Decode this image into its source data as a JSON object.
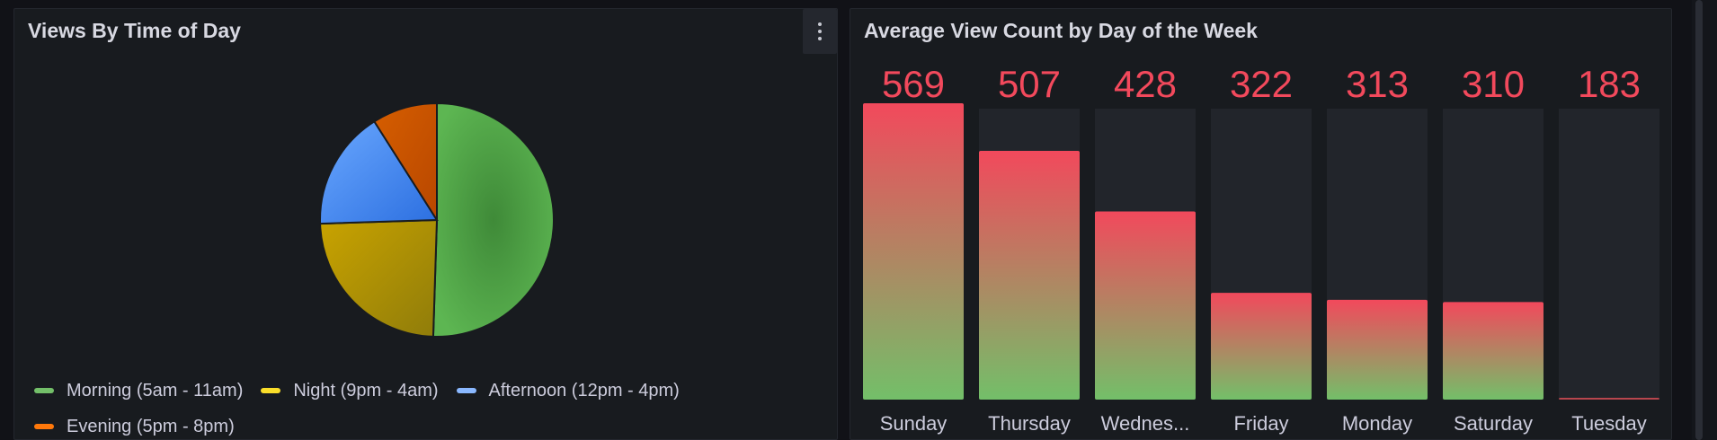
{
  "pie_panel": {
    "title": "Views By Time of Day",
    "menu_icon": "kebab-menu-icon"
  },
  "bar_panel": {
    "title": "Average View Count by Day of the Week"
  },
  "colors": {
    "morning": "#56a64b",
    "night": "#e0b400",
    "afternoon": "#5794f2",
    "evening": "#ff780a",
    "bar_top": "#f2495c",
    "bar_bottom": "#73bf69",
    "value_text": "#f2495c"
  },
  "legend": [
    {
      "label": "Morning (5am - 11am)",
      "color": "#73bf69"
    },
    {
      "label": "Night (9pm - 4am)",
      "color": "#fade2a"
    },
    {
      "label": "Afternoon (12pm - 4pm)",
      "color": "#8ab8ff"
    },
    {
      "label": "Evening (5pm - 8pm)",
      "color": "#ff780a"
    }
  ],
  "chart_data": [
    {
      "type": "pie",
      "labels": [
        "Morning (5am - 11am)",
        "Night (9pm - 4am)",
        "Afternoon (12pm - 4pm)",
        "Evening (5pm - 8pm)"
      ],
      "values": [
        50.5,
        24.0,
        16.5,
        9.0
      ],
      "colors": [
        "#56a64b",
        "#e0b400",
        "#3274d9",
        "#e05b00"
      ],
      "legend_position": "bottom"
    },
    {
      "type": "bar",
      "categories": [
        "Sunday",
        "Thursday",
        "Wednes...",
        "Friday",
        "Monday",
        "Saturday",
        "Tuesday"
      ],
      "values": [
        569,
        507,
        428,
        322,
        313,
        310,
        183
      ],
      "value_labels": [
        "569",
        "507",
        "428",
        "322",
        "313",
        "310",
        "183"
      ],
      "ylim": [
        183,
        569
      ]
    }
  ]
}
